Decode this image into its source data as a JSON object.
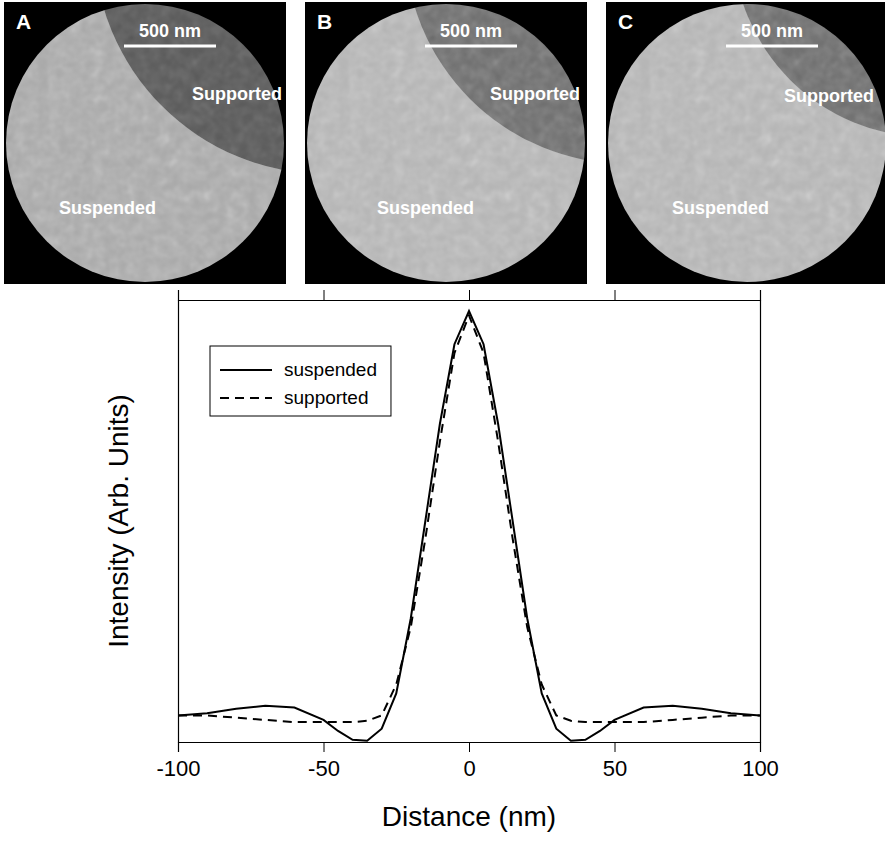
{
  "panels": [
    {
      "letter": "A",
      "scale_bar": "500 nm",
      "labels": [
        "Supported",
        "Suspended"
      ]
    },
    {
      "letter": "B",
      "scale_bar": "500 nm",
      "labels": [
        "Supported",
        "Suspended"
      ]
    },
    {
      "letter": "C",
      "scale_bar": "500 nm",
      "labels": [
        "Supported",
        "Suspended"
      ]
    }
  ],
  "chart_data": {
    "type": "line",
    "x_label": "Distance (nm)",
    "y_label": "Intensity (Arb. Units)",
    "x": [
      -100,
      -90,
      -80,
      -70,
      -60,
      -50,
      -45,
      -40,
      -35,
      -30,
      -25,
      -20,
      -15,
      -10,
      -5,
      0,
      5,
      10,
      15,
      20,
      25,
      30,
      35,
      40,
      45,
      50,
      60,
      70,
      80,
      90,
      100
    ],
    "series": [
      {
        "name": "suspended",
        "color": "#000000",
        "line_style": "solid",
        "values": [
          0.06,
          0.065,
          0.075,
          0.082,
          0.078,
          0.05,
          0.025,
          0.005,
          0.003,
          0.03,
          0.11,
          0.28,
          0.5,
          0.72,
          0.9,
          0.975,
          0.9,
          0.72,
          0.5,
          0.28,
          0.11,
          0.03,
          0.003,
          0.005,
          0.025,
          0.05,
          0.078,
          0.082,
          0.075,
          0.065,
          0.06
        ]
      },
      {
        "name": "supported",
        "color": "#000000",
        "line_style": "dashed",
        "values": [
          0.06,
          0.06,
          0.055,
          0.05,
          0.045,
          0.045,
          0.045,
          0.045,
          0.048,
          0.06,
          0.13,
          0.26,
          0.46,
          0.68,
          0.88,
          0.965,
          0.88,
          0.68,
          0.46,
          0.26,
          0.13,
          0.06,
          0.048,
          0.045,
          0.045,
          0.045,
          0.045,
          0.05,
          0.055,
          0.06,
          0.06
        ]
      }
    ],
    "xlim": [
      -100,
      100
    ],
    "xticks": [
      -100,
      -50,
      0,
      50,
      100
    ],
    "ylim": [
      0,
      1
    ],
    "tick_labels": "x",
    "legend": "upper left"
  }
}
